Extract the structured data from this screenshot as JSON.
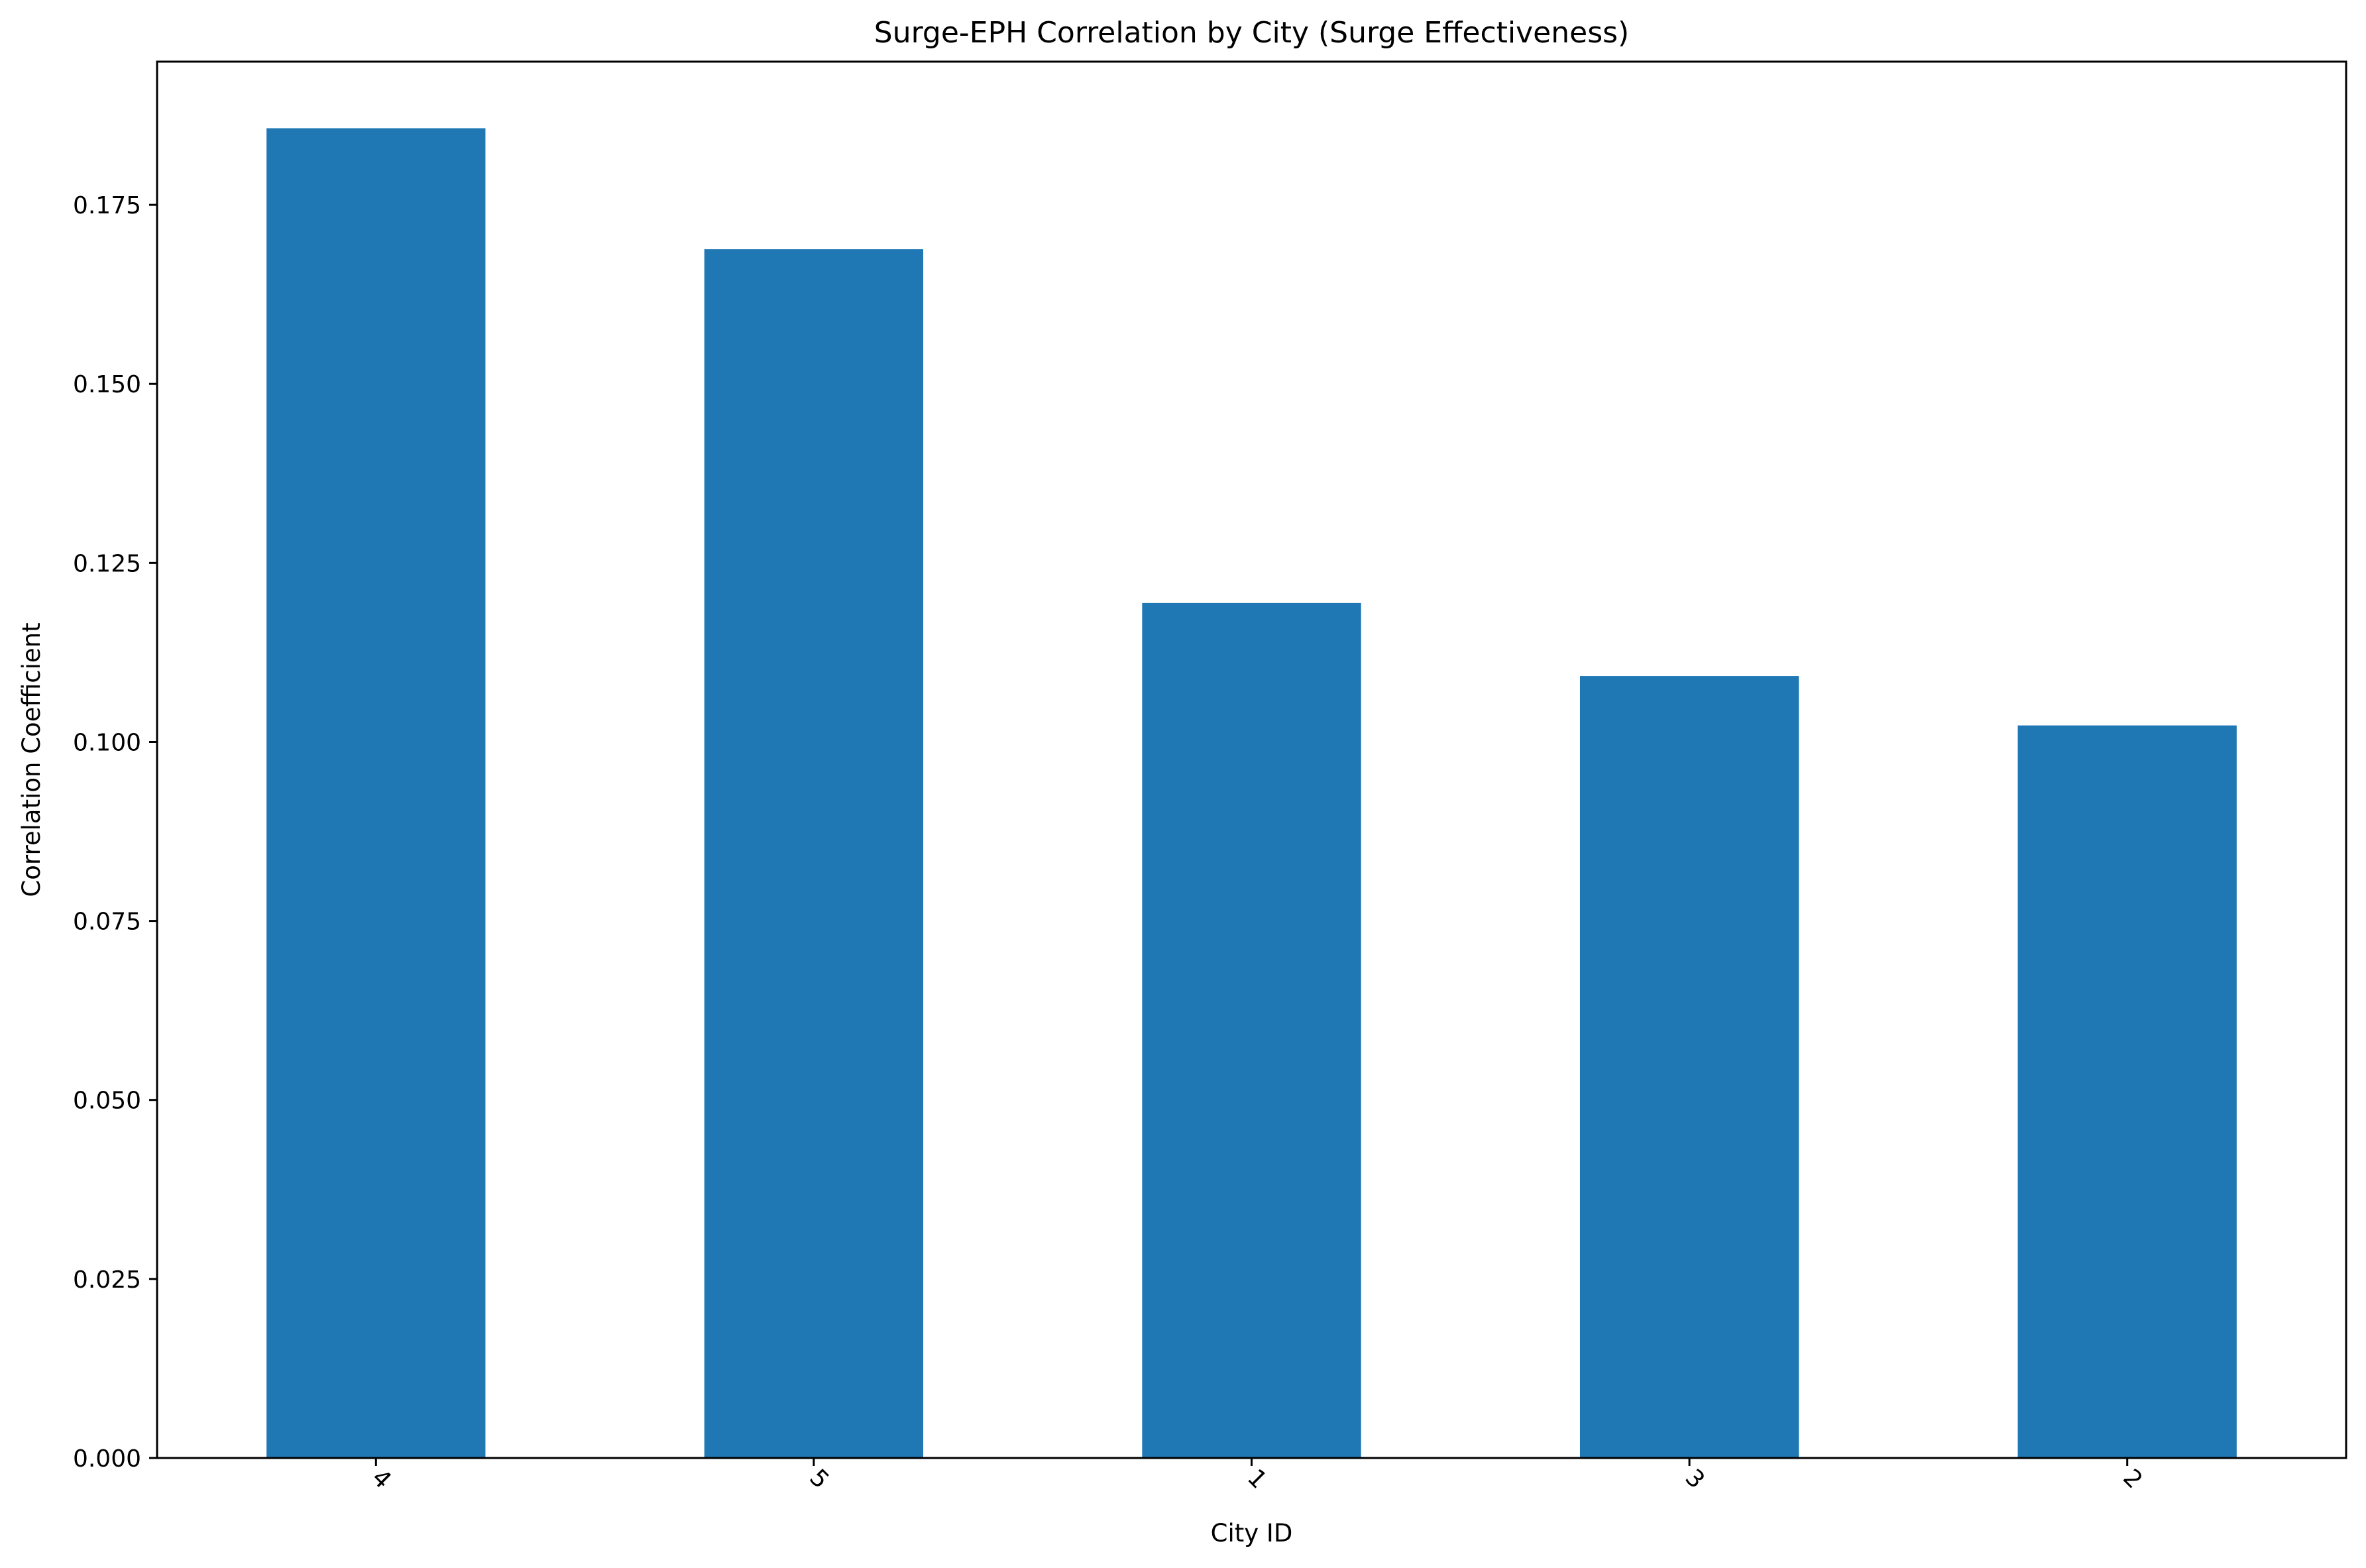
{
  "chart_data": {
    "type": "bar",
    "title": "Surge-EPH Correlation by City (Surge Effectiveness)",
    "xlabel": "City ID",
    "ylabel": "Correlation Coefficient",
    "categories": [
      "4",
      "5",
      "1",
      "3",
      "2"
    ],
    "values": [
      0.1857,
      0.1688,
      0.1194,
      0.1092,
      0.1023
    ],
    "ylim": [
      0,
      0.195
    ],
    "yticks": [
      0.0,
      0.025,
      0.05,
      0.075,
      0.1,
      0.125,
      0.15,
      0.175
    ],
    "ytick_labels": [
      "0.000",
      "0.025",
      "0.050",
      "0.075",
      "0.100",
      "0.125",
      "0.150",
      "0.175"
    ],
    "reference_line": {
      "y": 0,
      "style": "dashed",
      "color": "#d62728"
    },
    "bar_color": "#1f77b4",
    "grid": false,
    "legend": "none"
  }
}
